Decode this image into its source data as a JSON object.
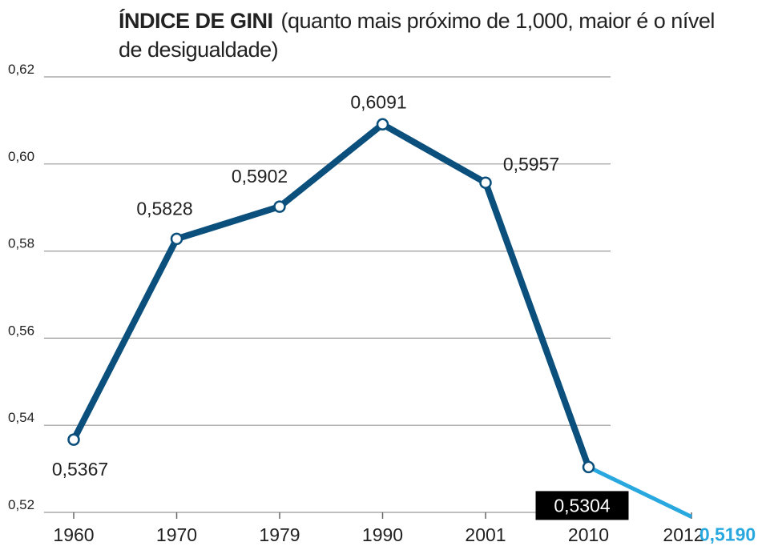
{
  "chart_data": {
    "type": "line",
    "title": "ÍNDICE DE GINI",
    "subtitle": "(quanto mais próximo de 1,000, maior é o nível de desigualdade)",
    "categories": [
      "1960",
      "1970",
      "1979",
      "1990",
      "2001",
      "2010",
      "2012"
    ],
    "series": [
      {
        "color": "#0b4f7c",
        "last_segment_color": "#29a8e0",
        "values": [
          0.5367,
          0.5828,
          0.5902,
          0.6091,
          0.5957,
          0.5304,
          0.519
        ],
        "value_labels": [
          "0,5367",
          "0,5828",
          "0,5902",
          "0,6091",
          "0,5957",
          "0,5304",
          "0,5190"
        ]
      }
    ],
    "ylim": [
      0.52,
      0.62
    ],
    "yticks": [
      {
        "value": 0.52,
        "label": "0,52"
      },
      {
        "value": 0.54,
        "label": "0,54"
      },
      {
        "value": 0.56,
        "label": "0,56"
      },
      {
        "value": 0.58,
        "label": "0,58"
      },
      {
        "value": 0.6,
        "label": "0,60"
      },
      {
        "value": 0.62,
        "label": "0,62"
      }
    ],
    "grid": true
  }
}
